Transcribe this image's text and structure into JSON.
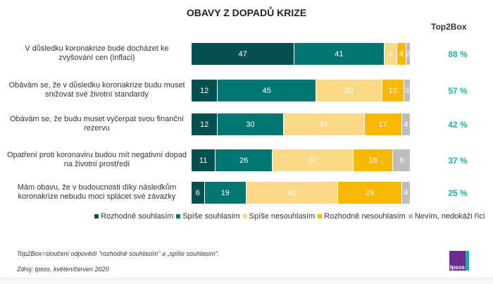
{
  "chart_data": {
    "type": "bar",
    "orientation": "horizontal",
    "stacked": true,
    "title": "OBAVY Z DOPADŮ KRIZE",
    "categories": [
      "V důsledku koronakrize bude docházet ke zvyšování cen (inflaci)",
      "Obávám se, že v důsledku koronakrize budu muset snižovat své životní standardy",
      "Obávám se, že budu muset vyčerpat svou finanční rezervu",
      "Opatření proti koronaviru budou mít negativní dopad na životní prostředí",
      "Mám obavu, že v budoucnosti díky následkům koronakrize nebudu moci splácet své závazky"
    ],
    "series": [
      {
        "name": "Rozhodně souhlasím",
        "color": "#03504F",
        "values": [
          47,
          12,
          12,
          11,
          6
        ]
      },
      {
        "name": "Spíše souhlasím",
        "color": "#007672",
        "values": [
          41,
          45,
          30,
          26,
          19
        ]
      },
      {
        "name": "Spíše nesouhlasím",
        "color": "#FCD987",
        "values": [
          6,
          30,
          37,
          37,
          42
        ]
      },
      {
        "name": "Rozhodně nesouhlasím",
        "color": "#F8B800",
        "values": [
          4,
          10,
          17,
          18,
          29
        ]
      },
      {
        "name": "Nevím, nedokáži říci",
        "color": "#BDBDBD",
        "values": [
          2,
          3,
          4,
          8,
          4
        ]
      }
    ],
    "top2box_label": "Top2Box",
    "top2box": [
      "88 %",
      "57 %",
      "42 %",
      "37 %",
      "25 %"
    ],
    "legend_position": "bottom"
  },
  "notes": {
    "definition": "Top2Box=sloučení odpovědí \"rozhodně souhlasím\" a „spíše souhlasím\".",
    "source": "Zdroj: Ipsos, květen/červen 2020"
  },
  "logo": "Ipsos"
}
